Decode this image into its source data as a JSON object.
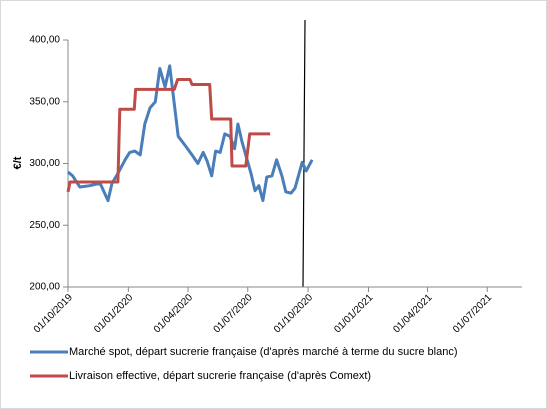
{
  "chart_data": {
    "type": "line",
    "y_label": "€/t",
    "ylim": [
      200,
      400
    ],
    "yticks": [
      {
        "value": 200,
        "label": "200,00"
      },
      {
        "value": 250,
        "label": "250,00"
      },
      {
        "value": 300,
        "label": "300,00"
      },
      {
        "value": 350,
        "label": "350,00"
      },
      {
        "value": 400,
        "label": "400,00"
      }
    ],
    "xlim": [
      "01/10/2019",
      "23/08/2021"
    ],
    "xticks": [
      "01/10/2019",
      "01/01/2020",
      "01/04/2020",
      "01/07/2020",
      "01/10/2020",
      "01/01/2021",
      "01/04/2021",
      "01/07/2021"
    ],
    "grid": false,
    "legend": "bottom",
    "series": [
      {
        "name": "Marché spot, départ sucrerie française (d'après marché à terme du sucre blanc)",
        "color": "#4a7ebb",
        "x": [
          "01/10/2019",
          "08/10/2019",
          "19/10/2019",
          "03/11/2019",
          "19/11/2019",
          "01/12/2019",
          "07/12/2019",
          "16/12/2019",
          "27/12/2019",
          "03/01/2020",
          "11/01/2020",
          "19/01/2020",
          "26/01/2020",
          "03/02/2020",
          "11/02/2020",
          "18/02/2020",
          "26/02/2020",
          "04/03/2020",
          "17/03/2020",
          "27/03/2020",
          "07/04/2020",
          "16/04/2020",
          "24/04/2020",
          "30/04/2020",
          "07/05/2020",
          "13/05/2020",
          "20/05/2020",
          "27/05/2020",
          "04/06/2020",
          "11/06/2020",
          "16/06/2020",
          "22/06/2020",
          "30/06/2020",
          "06/07/2020",
          "12/07/2020",
          "18/07/2020",
          "24/07/2020",
          "30/07/2020",
          "07/08/2020",
          "14/08/2020",
          "22/08/2020",
          "28/08/2020",
          "05/09/2020",
          "11/09/2020",
          "22/09/2020",
          "28/09/2020",
          "07/10/2020"
        ],
        "values": [
          293,
          290,
          281,
          282,
          284,
          270,
          284,
          292,
          303,
          309,
          310,
          307,
          332,
          345,
          350,
          377,
          362,
          379,
          322,
          315,
          307,
          300,
          309,
          302,
          290,
          310,
          309,
          324,
          322,
          312,
          332,
          318,
          303,
          292,
          278,
          282,
          270,
          289,
          290,
          303,
          290,
          277,
          276,
          280,
          301,
          294,
          303
        ]
      },
      {
        "name": "Livraison effective, départ sucrerie française (d'après Comext)",
        "color": "#be4b48",
        "x": [
          "01/10/2019",
          "04/10/2019",
          "16/12/2019",
          "19/12/2019",
          "10/01/2020",
          "12/01/2020",
          "11/03/2020",
          "16/03/2020",
          "04/04/2020",
          "07/04/2020",
          "04/05/2020",
          "07/05/2020",
          "05/06/2020",
          "07/06/2020",
          "28/06/2020",
          "04/07/2020",
          "04/08/2020"
        ],
        "values": [
          277,
          285,
          285,
          344,
          344,
          360,
          360,
          368,
          368,
          364,
          364,
          336,
          336,
          298,
          298,
          324,
          324
        ]
      }
    ]
  }
}
